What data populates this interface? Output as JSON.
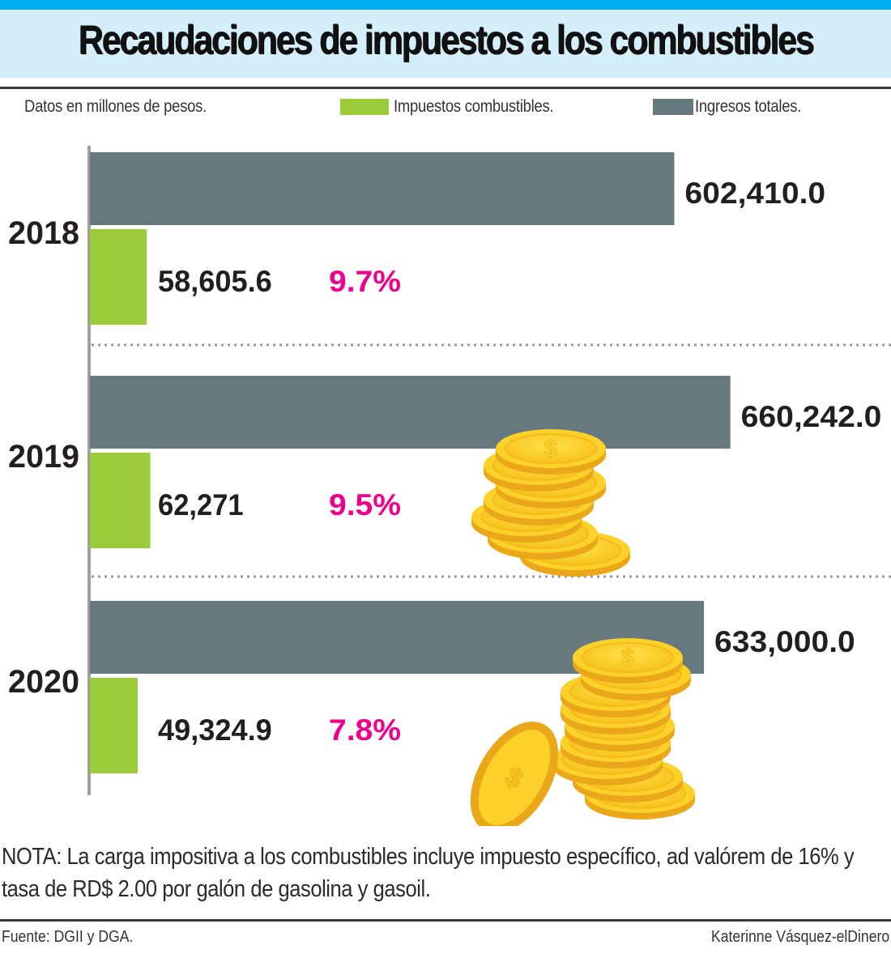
{
  "header": {
    "title": "Recaudaciones de impuestos a los combustibles",
    "accent_color": "#00aeef",
    "band_color": "#d4eefa"
  },
  "subtitle": "Datos en millones de pesos.",
  "legend": [
    {
      "label": "Impuestos combustibles.",
      "color": "#9ccb3b"
    },
    {
      "label": "Ingresos totales.",
      "color": "#66797e"
    }
  ],
  "chart_data": {
    "type": "bar",
    "orientation": "horizontal",
    "title": "Recaudaciones de impuestos a los combustibles",
    "subtitle": "Datos en millones de pesos.",
    "categories": [
      "2018",
      "2019",
      "2020"
    ],
    "series": [
      {
        "name": "Ingresos totales.",
        "color": "#66797e",
        "values": [
          602410.0,
          660242.0,
          633000.0
        ],
        "labels": [
          "602,410.0",
          "660,242.0",
          "633,000.0"
        ]
      },
      {
        "name": "Impuestos combustibles.",
        "color": "#9ccb3b",
        "values": [
          58605.6,
          62271,
          49324.9
        ],
        "labels": [
          "58,605.6",
          "62,271",
          "49,324.9"
        ]
      }
    ],
    "percent_labels": [
      "9.7%",
      "9.5%",
      "7.8%"
    ],
    "percent_color": "#ec008c",
    "xlim": [
      0,
      830000
    ],
    "grid": false,
    "legend_position": "top",
    "decorations": [
      "coin-stack-icon",
      "coin-stack-icon"
    ]
  },
  "note": "NOTA: La carga impositiva a los combustibles incluye impuesto específico, ad valórem de 16% y tasa de RD$ 2.00 por galón de gasolina y gasoil.",
  "footer": {
    "source": "Fuente: DGII y DGA.",
    "credit": "Katerinne Vásquez-elDinero"
  }
}
